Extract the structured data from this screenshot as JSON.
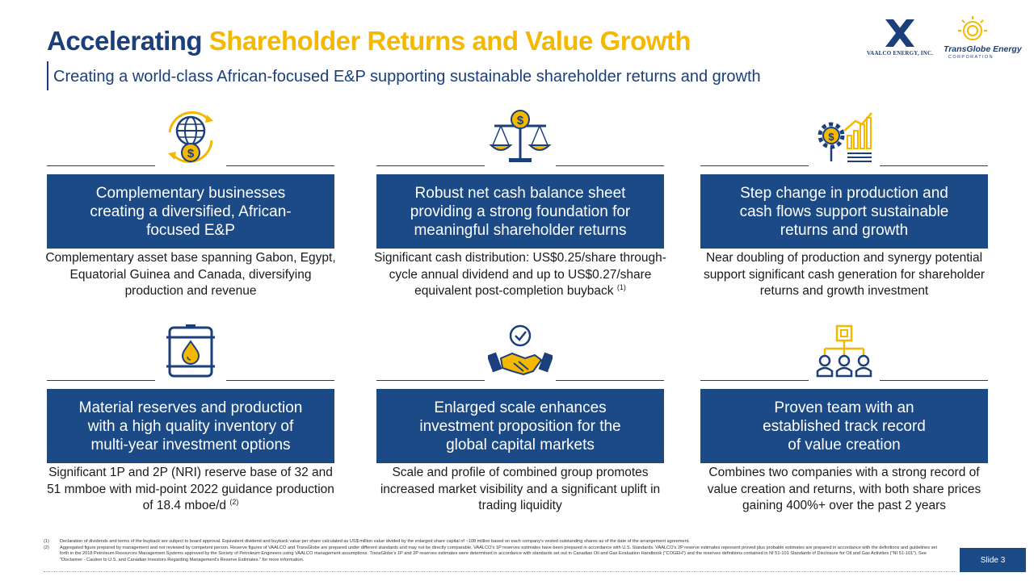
{
  "title": {
    "part1": "Accelerating",
    "part2": "Shareholder Returns and Value Growth"
  },
  "subtitle": "Creating a world-class African-focused E&P supporting sustainable shareholder returns and growth",
  "logos": {
    "vaalco_text": "VAALCO ENERGY, INC.",
    "transglobe_name": "TransGlobe Energy",
    "transglobe_sub": "CORPORATION"
  },
  "cards": [
    {
      "icon": "globe-dollar-icon",
      "heading": "Complementary businesses\ncreating a diversified, African-\nfocused E&P",
      "desc": "Complementary asset base spanning Gabon, Egypt, Equatorial Guinea and Canada, diversifying production and revenue",
      "note": ""
    },
    {
      "icon": "balance-scale-icon",
      "heading": "Robust net cash balance sheet\nproviding a strong foundation for\nmeaningful shareholder returns",
      "desc": "Significant cash distribution: US$0.25/share through-cycle annual dividend and up to US$0.27/share equivalent post-completion buyback",
      "note": "(1)"
    },
    {
      "icon": "gear-growth-chart-icon",
      "heading": "Step change in production and\ncash flows support sustainable\nreturns and growth",
      "desc": "Near doubling of production and synergy potential support significant cash generation for shareholder returns and growth investment",
      "note": ""
    },
    {
      "icon": "oil-barrel-icon",
      "heading": "Material reserves and production\nwith a high quality inventory of\nmulti-year investment options",
      "desc": "Significant 1P and 2P (NRI) reserve base of 32 and 51 mmboe with mid-point 2022 guidance production of 18.4 mboe/d",
      "note": "(2)"
    },
    {
      "icon": "handshake-check-icon",
      "heading": "Enlarged scale enhances\ninvestment proposition for the\nglobal capital markets",
      "desc": "Scale and profile of combined group promotes increased market visibility and a significant uplift in trading liquidity",
      "note": ""
    },
    {
      "icon": "team-hierarchy-icon",
      "heading": "Proven team with an\nestablished track record\nof value creation",
      "desc": "Combines two companies with a strong record of value creation and returns, with both share prices gaining 400%+ over the past 2 years",
      "note": ""
    }
  ],
  "footnotes": [
    {
      "num": "(1)",
      "text": "Declaration of dividends and terms of the buyback are subject to board approval. Equivalent dividend and buyback value per share calculated as US$ million value divided by the enlarged share capital of ~108 million based on each company's vested outstanding shares as of the date of the arrangement agreement."
    },
    {
      "num": "(2)",
      "text": "Aggregated figure prepared by management and not reviewed by competent person. Reserve figures of VAALCO and TransGlobe are prepared under different standards and may not be directly comparable. VAALCO's 1P reserves estimates have been prepared in accordance with U.S. Standards. VAALCO's 2P reserve estimates represent proved plus probable estimates are prepared in accordance with the definitions and guidelines set forth in the 2018 Petroleum Resources Management Systems approved by the Society of Petroleum Engineers using VAALCO management assumptions. TransGlobe's 1P and 2P reserves estimates were determined in accordance with standards set out in Canadian Oil and Gas Evaluation Handbook (\"COGEH\") and the reserves definitions contained in NI 51-101 Standards of Disclosure for Oil and Gas Activities (\"NI 51-101\"). See \"Disclaimer - Caution to U.S. and Canadian Investors Regarding Management's Reserve Estimates.\" for more information."
    }
  ],
  "slide_label": "Slide 3",
  "colors": {
    "navy": "#1b4a86",
    "title_navy": "#1b3f7a",
    "gold": "#f5b800"
  }
}
